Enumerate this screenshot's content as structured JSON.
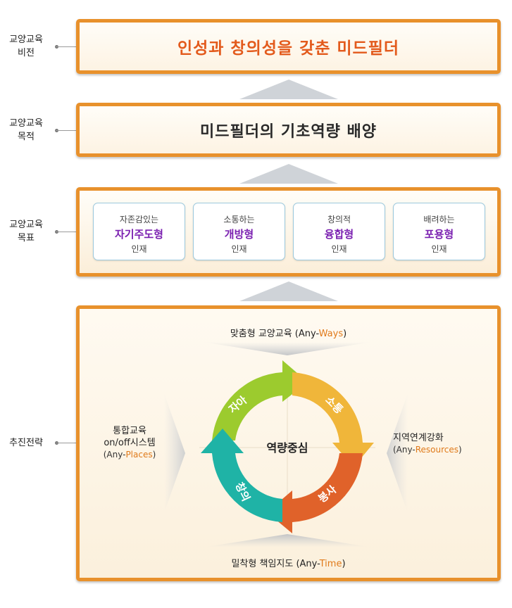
{
  "side_labels": {
    "vision": [
      "교양교육",
      "비전"
    ],
    "purpose": [
      "교양교육",
      "목적"
    ],
    "goal": [
      "교양교육",
      "목표"
    ],
    "strategy": [
      "추진전략"
    ]
  },
  "vision": {
    "text": "인성과 창의성을 갖춘 미드필더"
  },
  "purpose": {
    "text": "미드필더의 기초역량 배양"
  },
  "goals": [
    {
      "top": "자존감있는",
      "main": "자기주도형",
      "bottom": "인재"
    },
    {
      "top": "소통하는",
      "main": "개방형",
      "bottom": "인재"
    },
    {
      "top": "창의적",
      "main": "융합형",
      "bottom": "인재"
    },
    {
      "top": "배려하는",
      "main": "포용형",
      "bottom": "인재"
    }
  ],
  "strategy": {
    "center": "역량중심",
    "cycle": [
      "자아",
      "소통",
      "봉사",
      "창의"
    ],
    "top": {
      "label": "맞춤형 교양교육 (Any-",
      "accent": "Ways",
      "close": ")"
    },
    "bottom": {
      "label": "밀착형 책임지도 (Any-",
      "accent": "Time",
      "close": ")"
    },
    "left": {
      "line1": "통합교육",
      "line2": "on/off시스템",
      "label": "(Any-",
      "accent": "Places",
      "close": ")"
    },
    "right": {
      "line1": "지역연계강화",
      "label": "(Any-",
      "accent": "Resources",
      "close": ")"
    }
  },
  "colors": {
    "band_border": "#e8912c",
    "vision_text": "#e35a1c",
    "goal_main": "#7a1fb0",
    "accent": "#e07a1a",
    "segment_self": "#9ccb2e",
    "segment_communication": "#f0b63a",
    "segment_service": "#e0622a",
    "segment_creativity": "#1fb3a6"
  }
}
